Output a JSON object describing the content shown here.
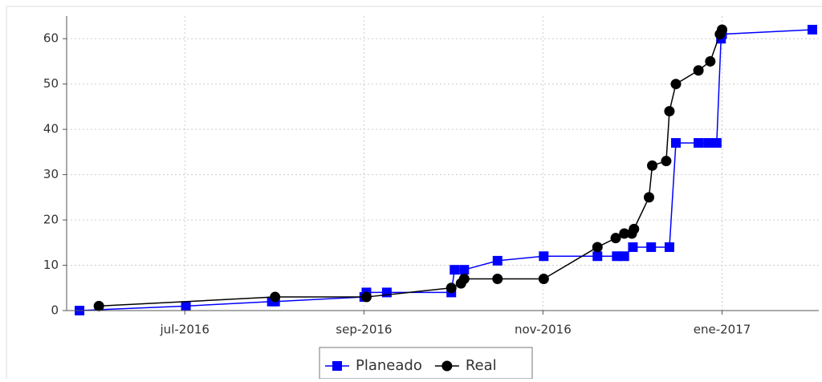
{
  "chart_data": {
    "type": "line",
    "xlim": [
      2016.39,
      2017.09
    ],
    "xticks": [
      {
        "value": 2016.5,
        "label": "jul-2016"
      },
      {
        "value": 2016.6667,
        "label": "sep-2016"
      },
      {
        "value": 2016.8333,
        "label": "nov-2016"
      },
      {
        "value": 2017.0,
        "label": "ene-2017"
      }
    ],
    "ylim": [
      0,
      65
    ],
    "yticks": [
      0,
      10,
      20,
      30,
      40,
      50,
      60
    ],
    "grid": true,
    "legend": "bottom",
    "series": [
      {
        "name": "Planeado",
        "color": "#0000ff",
        "marker": "square",
        "x": [
          2016.402,
          2016.501,
          2016.581,
          2016.584,
          2016.667,
          2016.669,
          2016.688,
          2016.748,
          2016.751,
          2016.76,
          2016.791,
          2016.834,
          2016.884,
          2016.902,
          2016.909,
          2016.917,
          2016.934,
          2016.951,
          2016.957,
          2016.978,
          2016.987,
          2016.995,
          2016.999,
          2017.0,
          2017.084
        ],
        "values": [
          0,
          1,
          2,
          2,
          3,
          4,
          4,
          4,
          9,
          9,
          11,
          12,
          12,
          12,
          12,
          14,
          14,
          14,
          37,
          37,
          37,
          37,
          60,
          61,
          62
        ]
      },
      {
        "name": "Real",
        "color": "#000000",
        "marker": "circle",
        "x": [
          2016.42,
          2016.584,
          2016.669,
          2016.748,
          2016.757,
          2016.76,
          2016.791,
          2016.834,
          2016.884,
          2016.901,
          2016.909,
          2016.916,
          2016.918,
          2016.932,
          2016.935,
          2016.948,
          2016.951,
          2016.957,
          2016.978,
          2016.989,
          2016.998,
          2017.0
        ],
        "values": [
          1,
          3,
          3,
          5,
          6,
          7,
          7,
          7,
          14,
          16,
          17,
          17,
          18,
          25,
          32,
          33,
          44,
          50,
          53,
          55,
          61,
          62
        ]
      }
    ]
  }
}
